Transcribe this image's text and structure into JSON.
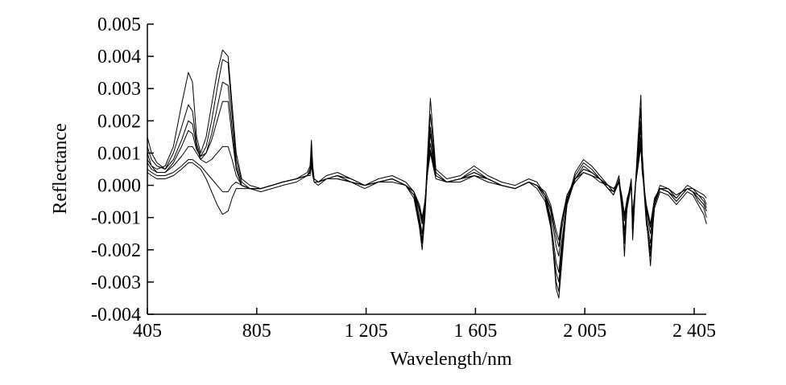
{
  "chart_data": {
    "type": "line",
    "title": "",
    "xlabel": "Wavelength/nm",
    "ylabel": "Reflectance",
    "xlim": [
      405,
      2450
    ],
    "ylim": [
      -0.004,
      0.005
    ],
    "x_ticks": [
      405,
      805,
      1205,
      1605,
      2005,
      2405
    ],
    "x_tick_labels": [
      "405",
      "805",
      "1 205",
      "1 605",
      "2 005",
      "2 405"
    ],
    "y_ticks": [
      -0.004,
      -0.003,
      -0.002,
      -0.001,
      0.0,
      0.001,
      0.002,
      0.003,
      0.004,
      0.005
    ],
    "y_tick_labels": [
      "-0.004",
      "-0.003",
      "-0.002",
      "-0.001",
      "0.000",
      "0.001",
      "0.002",
      "0.003",
      "0.004",
      "0.005"
    ],
    "grid": false,
    "legend": "none",
    "line_color": "#000000",
    "x": [
      405,
      420,
      440,
      470,
      500,
      530,
      555,
      570,
      585,
      600,
      620,
      640,
      660,
      680,
      700,
      715,
      730,
      750,
      780,
      820,
      860,
      900,
      950,
      990,
      1000,
      1005,
      1010,
      1015,
      1030,
      1060,
      1100,
      1150,
      1200,
      1250,
      1300,
      1350,
      1380,
      1400,
      1410,
      1420,
      1430,
      1440,
      1460,
      1500,
      1550,
      1600,
      1650,
      1700,
      1750,
      1800,
      1830,
      1860,
      1880,
      1900,
      1910,
      1920,
      1940,
      1970,
      2000,
      2030,
      2060,
      2090,
      2110,
      2130,
      2140,
      2150,
      2160,
      2175,
      2180,
      2190,
      2200,
      2210,
      2215,
      2230,
      2245,
      2260,
      2280,
      2310,
      2340,
      2360,
      2380,
      2400,
      2420,
      2440,
      2450
    ],
    "series": [
      {
        "values": [
          0.0008,
          0.0006,
          0.0005,
          0.0006,
          0.0012,
          0.0025,
          0.0035,
          0.0032,
          0.0015,
          0.001,
          0.0015,
          0.0025,
          0.0035,
          0.0042,
          0.004,
          0.0025,
          0.001,
          0.0002,
          0.0,
          -0.0001,
          0.0,
          0.0001,
          0.0002,
          0.0004,
          0.0006,
          0.0014,
          0.0006,
          0.0002,
          0.0001,
          0.0003,
          0.0004,
          0.0002,
          0.0,
          0.0002,
          0.0003,
          0.0001,
          -0.0002,
          -0.001,
          -0.0015,
          -0.0007,
          0.001,
          0.0027,
          0.0005,
          0.0002,
          0.0003,
          0.0006,
          0.0003,
          0.0001,
          0.0,
          0.0002,
          0.0001,
          -0.0003,
          -0.001,
          -0.0032,
          -0.0035,
          -0.0025,
          -0.0005,
          0.0004,
          0.0008,
          0.0006,
          0.0003,
          0.0,
          -0.0002,
          0.0003,
          -0.0005,
          -0.0022,
          -0.0005,
          0.0002,
          -0.0015,
          0.0,
          0.0015,
          0.0028,
          0.001,
          -0.001,
          -0.0025,
          -0.0005,
          0.0,
          -0.0001,
          -0.0004,
          -0.0002,
          0.0,
          -0.0001,
          -0.0002,
          -0.0003,
          -0.0004
        ]
      },
      {
        "values": [
          0.0012,
          0.0008,
          0.0006,
          0.0005,
          0.001,
          0.0018,
          0.0025,
          0.0023,
          0.0013,
          0.0009,
          0.0012,
          0.002,
          0.003,
          0.0039,
          0.0038,
          0.0022,
          0.0008,
          0.0001,
          -0.0001,
          -0.0001,
          0.0,
          0.0001,
          0.0002,
          0.0003,
          0.0005,
          0.0012,
          0.0005,
          0.0002,
          0.0001,
          0.0002,
          0.0003,
          0.0002,
          0.0,
          0.0001,
          0.0002,
          0.0,
          -0.0003,
          -0.0012,
          -0.0018,
          -0.0009,
          0.0008,
          0.0022,
          0.0004,
          0.0001,
          0.0002,
          0.0005,
          0.0002,
          0.0,
          -0.0001,
          0.0001,
          0.0,
          -0.0004,
          -0.0012,
          -0.003,
          -0.0033,
          -0.0022,
          -0.0006,
          0.0003,
          0.0007,
          0.0005,
          0.0002,
          -0.0001,
          -0.0003,
          0.0002,
          -0.0006,
          -0.0018,
          -0.0006,
          0.0001,
          -0.0016,
          0.0,
          0.0012,
          0.0024,
          0.0008,
          -0.0011,
          -0.0022,
          -0.0006,
          -0.0001,
          -0.0002,
          -0.0005,
          -0.0003,
          -0.0001,
          -0.0002,
          -0.0004,
          -0.0006,
          -0.0008
        ]
      },
      {
        "values": [
          0.0015,
          0.001,
          0.0007,
          0.0005,
          0.0008,
          0.0014,
          0.002,
          0.0019,
          0.0012,
          0.0008,
          0.001,
          0.0016,
          0.0024,
          0.0032,
          0.0031,
          0.0018,
          0.0006,
          0.0,
          -0.0001,
          -0.0002,
          -0.0001,
          0.0,
          0.0001,
          0.0003,
          0.0004,
          0.001,
          0.0004,
          0.0001,
          0.0,
          0.0002,
          0.0003,
          0.0001,
          -0.0001,
          0.0001,
          0.0002,
          0.0,
          -0.0004,
          -0.0013,
          -0.002,
          -0.001,
          0.0006,
          0.0018,
          0.0003,
          0.0001,
          0.0002,
          0.0004,
          0.0002,
          0.0,
          -0.0001,
          0.0001,
          -0.0001,
          -0.0005,
          -0.0013,
          -0.0027,
          -0.003,
          -0.002,
          -0.0006,
          0.0002,
          0.0006,
          0.0004,
          0.0002,
          -0.0001,
          -0.0003,
          0.0001,
          -0.0007,
          -0.0016,
          -0.0007,
          0.0,
          -0.0017,
          -0.0001,
          0.001,
          0.002,
          0.0006,
          -0.0012,
          -0.002,
          -0.0007,
          -0.0002,
          -0.0003,
          -0.0006,
          -0.0004,
          -0.0002,
          -0.0003,
          -0.0006,
          -0.0009,
          -0.0012
        ]
      },
      {
        "values": [
          0.001,
          0.0006,
          0.0004,
          0.0004,
          0.0007,
          0.0012,
          0.0017,
          0.0016,
          0.0011,
          0.0009,
          0.001,
          0.0014,
          0.002,
          0.0026,
          0.0026,
          0.0015,
          0.0005,
          0.0,
          -0.0001,
          -0.0001,
          0.0,
          0.0001,
          0.0002,
          0.0003,
          0.0004,
          0.0009,
          0.0004,
          0.0002,
          0.0001,
          0.0002,
          0.0003,
          0.0001,
          0.0,
          0.0001,
          0.0002,
          0.0,
          -0.0003,
          -0.0011,
          -0.0017,
          -0.0008,
          0.0006,
          0.0016,
          0.0003,
          0.0001,
          0.0002,
          0.0004,
          0.0002,
          0.0,
          -0.0001,
          0.0001,
          0.0,
          -0.0004,
          -0.0011,
          -0.0024,
          -0.0027,
          -0.0018,
          -0.0005,
          0.0002,
          0.0005,
          0.0004,
          0.0002,
          -0.0001,
          -0.0002,
          0.0001,
          -0.0006,
          -0.0014,
          -0.0006,
          0.0,
          -0.0014,
          0.0,
          0.0009,
          0.0018,
          0.0006,
          -0.001,
          -0.0018,
          -0.0006,
          -0.0001,
          -0.0002,
          -0.0005,
          -0.0003,
          -0.0001,
          -0.0002,
          -0.0005,
          -0.0007,
          -0.001
        ]
      },
      {
        "values": [
          0.0007,
          0.0005,
          0.0004,
          0.0004,
          0.0006,
          0.0009,
          0.0012,
          0.0012,
          0.001,
          0.0008,
          0.0007,
          0.0008,
          0.001,
          0.0012,
          0.0012,
          0.0008,
          0.0003,
          0.0,
          -0.0001,
          -0.0001,
          0.0,
          0.0001,
          0.0002,
          0.0003,
          0.0004,
          0.0008,
          0.0003,
          0.0002,
          0.0001,
          0.0002,
          0.0002,
          0.0001,
          0.0,
          0.0001,
          0.0002,
          0.0,
          -0.0002,
          -0.0008,
          -0.0012,
          -0.0006,
          0.0005,
          0.0013,
          0.0003,
          0.0001,
          0.0002,
          0.0003,
          0.0002,
          0.0,
          -0.0001,
          0.0001,
          0.0,
          -0.0003,
          -0.0008,
          -0.0019,
          -0.0022,
          -0.0014,
          -0.0004,
          0.0002,
          0.0005,
          0.0004,
          0.0002,
          0.0,
          -0.0002,
          0.0001,
          -0.0004,
          -0.0011,
          -0.0005,
          0.0,
          -0.0011,
          0.0,
          0.0008,
          0.0015,
          0.0005,
          -0.0008,
          -0.0015,
          -0.0005,
          -0.0001,
          -0.0002,
          -0.0004,
          -0.0002,
          -0.0001,
          -0.0002,
          -0.0004,
          -0.0006,
          -0.0008
        ]
      },
      {
        "values": [
          0.0005,
          0.0004,
          0.0003,
          0.0003,
          0.0004,
          0.0006,
          0.0008,
          0.0008,
          0.0007,
          0.0006,
          0.0004,
          0.0002,
          0.0,
          -0.0002,
          -0.0002,
          0.0,
          0.0001,
          0.0,
          -0.0001,
          -0.0001,
          0.0,
          0.0001,
          0.0002,
          0.0003,
          0.0004,
          0.0007,
          0.0003,
          0.0002,
          0.0001,
          0.0002,
          0.0002,
          0.0001,
          0.0,
          0.0001,
          0.0002,
          0.0,
          -0.0002,
          -0.0007,
          -0.0011,
          -0.0005,
          0.0004,
          0.0011,
          0.0003,
          0.0001,
          0.0002,
          0.0003,
          0.0002,
          0.0,
          -0.0001,
          0.0001,
          0.0,
          -0.0003,
          -0.0007,
          -0.0016,
          -0.0019,
          -0.0012,
          -0.0003,
          0.0002,
          0.0004,
          0.0003,
          0.0002,
          0.0,
          -0.0001,
          0.0001,
          -0.0004,
          -0.001,
          -0.0004,
          0.0,
          -0.001,
          0.0,
          0.0007,
          0.0013,
          0.0004,
          -0.0007,
          -0.0013,
          -0.0004,
          -0.0001,
          -0.0001,
          -0.0003,
          -0.0002,
          -0.0001,
          -0.0002,
          -0.0003,
          -0.0005,
          -0.0007
        ]
      },
      {
        "values": [
          0.0004,
          0.0003,
          0.0002,
          0.0002,
          0.0003,
          0.0005,
          0.0007,
          0.0007,
          0.0006,
          0.0005,
          0.0002,
          -0.0002,
          -0.0006,
          -0.0009,
          -0.0008,
          -0.0004,
          -0.0001,
          -0.0001,
          -0.0001,
          -0.0001,
          0.0,
          0.0001,
          0.0002,
          0.0003,
          0.0003,
          0.0006,
          0.0003,
          0.0001,
          0.0001,
          0.0002,
          0.0002,
          0.0001,
          0.0,
          0.0001,
          0.0001,
          0.0,
          -0.0002,
          -0.0006,
          -0.001,
          -0.0005,
          0.0004,
          0.001,
          0.0002,
          0.0001,
          0.0001,
          0.0003,
          0.0001,
          0.0,
          -0.0001,
          0.0001,
          0.0,
          -0.0002,
          -0.0006,
          -0.0014,
          -0.0017,
          -0.0011,
          -0.0003,
          0.0001,
          0.0004,
          0.0003,
          0.0001,
          0.0,
          -0.0001,
          0.0001,
          -0.0003,
          -0.0009,
          -0.0004,
          0.0,
          -0.0009,
          0.0,
          0.0006,
          0.0012,
          0.0004,
          -0.0006,
          -0.0012,
          -0.0004,
          -0.0001,
          -0.0001,
          -0.0003,
          -0.0002,
          -0.0001,
          -0.0001,
          -0.0003,
          -0.0004,
          -0.0006
        ]
      }
    ]
  }
}
